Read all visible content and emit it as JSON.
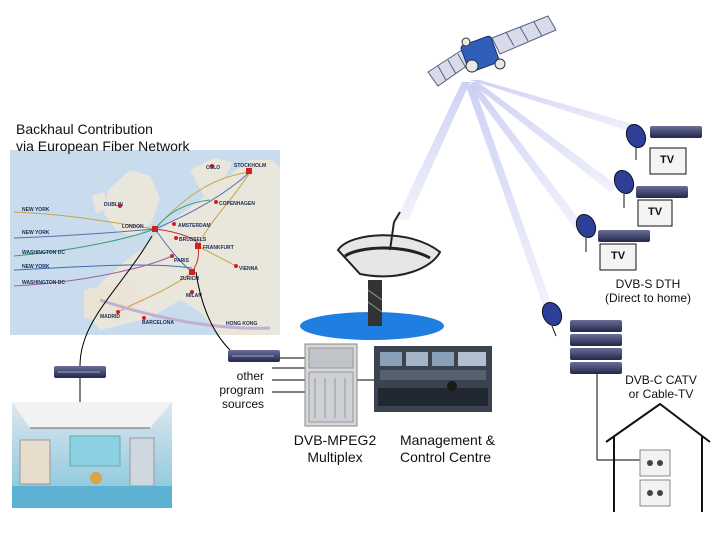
{
  "backhaul": {
    "line1": "Backhaul Contribution",
    "line2": "via European Fiber Network"
  },
  "map": {
    "cities": [
      "OSLO",
      "STOCKHOLM",
      "DUBLIN",
      "COPENHAGEN",
      "NEW YORK",
      "NEW YORK",
      "WASHINGTON DC",
      "NEW YORK",
      "WASHINGTON DC",
      "LONDON",
      "AMSTERDAM",
      "BRUSSELS",
      "FRANKFURT",
      "PARIS",
      "VIENNA",
      "ZURICH",
      "MILAN",
      "MADRID",
      "BARCELONA",
      "HONG KONG"
    ]
  },
  "sources": {
    "line1": "other",
    "line2": "program",
    "line3": "sources"
  },
  "multiplex": {
    "line1": "DVB-MPEG2",
    "line2": "Multiplex"
  },
  "control": {
    "line1": "Management &",
    "line2": "Control Centre"
  },
  "dth": {
    "tv": "TV",
    "line1": "DVB-S DTH",
    "line2": "(Direct to home)"
  },
  "catv": {
    "line1": "DVB-C CATV",
    "line2": "or Cable-TV"
  },
  "colors": {
    "water": "#1e7fe0",
    "box": "#3a3f6a",
    "beam": "#c9ccf2"
  }
}
